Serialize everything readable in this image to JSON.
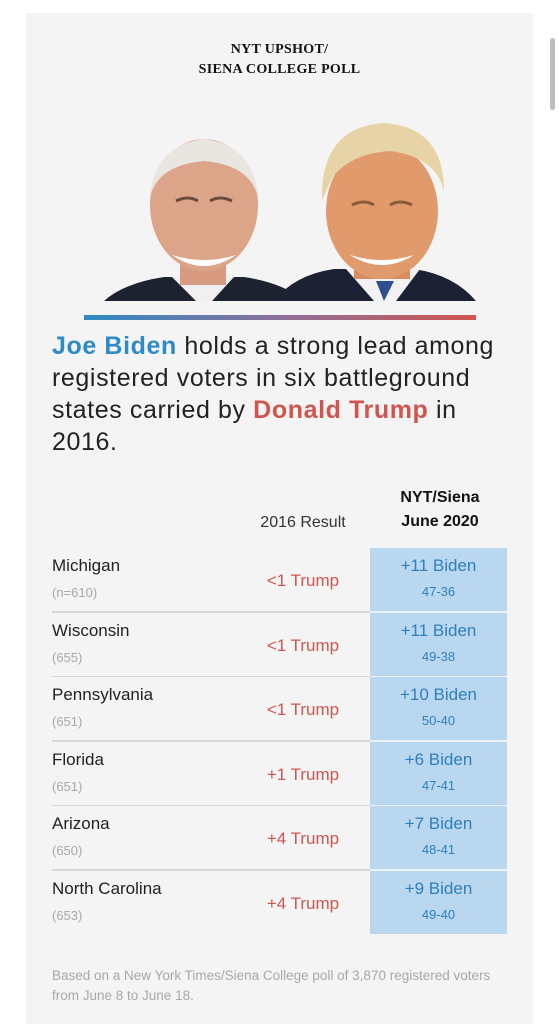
{
  "kicker": {
    "line1": "NYT UPSHOT/",
    "line2": "SIENA COLLEGE POLL"
  },
  "headline": {
    "biden_name": "Joe Biden",
    "part1": " holds a strong lead among registered voters in six battleground states carried by ",
    "trump_name": "Donald Trump",
    "part2": " in 2016."
  },
  "colors": {
    "biden": "#2f8ac6",
    "trump": "#d1554f",
    "nyt_cell": "#b9d7ee"
  },
  "columns": {
    "result_2016": "2016 Result",
    "nyt_line1": "NYT/Siena",
    "nyt_line2": "June 2020"
  },
  "chart_data": {
    "type": "table",
    "columns": [
      "2016 Result",
      "NYT/Siena June 2020"
    ],
    "rows": [
      {
        "state": "Michigan",
        "n": "(n=610)",
        "result_2016": "<1 Trump",
        "margin": "+11 Biden",
        "score": "47-36"
      },
      {
        "state": "Wisconsin",
        "n": "(655)",
        "result_2016": "<1 Trump",
        "margin": "+11 Biden",
        "score": "49-38"
      },
      {
        "state": "Pennsylvania",
        "n": "(651)",
        "result_2016": "<1 Trump",
        "margin": "+10 Biden",
        "score": "50-40"
      },
      {
        "state": "Florida",
        "n": "(651)",
        "result_2016": "+1 Trump",
        "margin": "+6 Biden",
        "score": "47-41"
      },
      {
        "state": "Arizona",
        "n": "(650)",
        "result_2016": "+4 Trump",
        "margin": "+7 Biden",
        "score": "48-41"
      },
      {
        "state": "North Carolina",
        "n": "(653)",
        "result_2016": "+4 Trump",
        "margin": "+9 Biden",
        "score": "49-40"
      }
    ]
  },
  "footnote": "Based on a New York Times/Siena College poll of 3,870 registered voters from June 8 to June 18."
}
